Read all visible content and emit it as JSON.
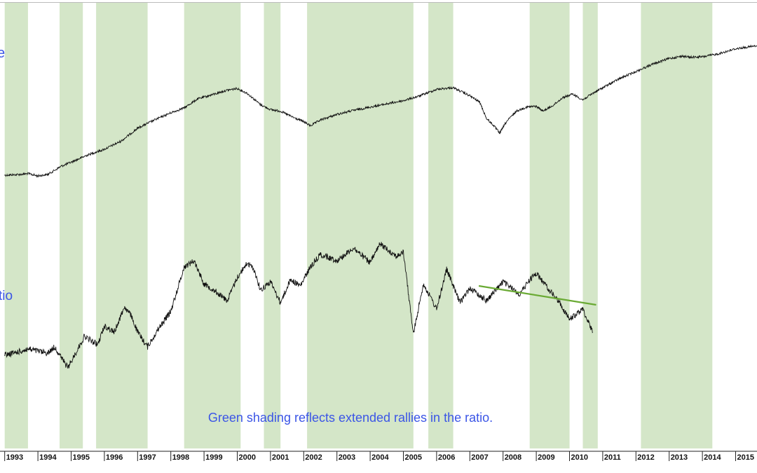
{
  "colors": {
    "shading": "#d4e6c8",
    "series_line": "#111111",
    "trendline": "#6aaa34",
    "annotation": "#3b55e6",
    "axis": "#222222",
    "background": "#ffffff"
  },
  "chart_data": {
    "type": "line",
    "title": "",
    "xlabel": "",
    "ylabel": "",
    "xlim": [
      1993.0,
      2016.0
    ],
    "tick_labels": [
      "1993",
      "1994",
      "1995",
      "1996",
      "1997",
      "1998",
      "1999",
      "2000",
      "2001",
      "2002",
      "2003",
      "2004",
      "2005",
      "2006",
      "2007",
      "2008",
      "2009",
      "2010",
      "2011",
      "2012",
      "2013",
      "2014",
      "2015"
    ],
    "series_labels": {
      "upper": "e",
      "lower": "tio"
    },
    "annotation": "Green shading reflects extended rallies in the ratio.",
    "shaded_periods": [
      [
        1993.0,
        1993.7
      ],
      [
        1994.65,
        1995.35
      ],
      [
        1995.75,
        1997.3
      ],
      [
        1998.4,
        2000.1
      ],
      [
        2000.8,
        2001.3
      ],
      [
        2002.1,
        2005.3
      ],
      [
        2005.75,
        2006.5
      ],
      [
        2008.8,
        2010.0
      ],
      [
        2010.4,
        2010.85
      ],
      [
        2012.15,
        2014.3
      ]
    ],
    "series": [
      {
        "id": "upper",
        "values": [
          [
            1993.0,
            8.0
          ],
          [
            1993.5,
            8.05
          ],
          [
            1993.7,
            8.1
          ],
          [
            1994.0,
            7.95
          ],
          [
            1994.3,
            8.05
          ],
          [
            1994.7,
            8.55
          ],
          [
            1995.0,
            8.8
          ],
          [
            1995.5,
            9.25
          ],
          [
            1996.0,
            9.6
          ],
          [
            1996.5,
            10.1
          ],
          [
            1997.0,
            10.9
          ],
          [
            1997.5,
            11.4
          ],
          [
            1998.0,
            11.85
          ],
          [
            1998.4,
            12.15
          ],
          [
            1998.8,
            12.7
          ],
          [
            1999.3,
            13.0
          ],
          [
            1999.7,
            13.25
          ],
          [
            2000.0,
            13.35
          ],
          [
            2000.3,
            13.05
          ],
          [
            2000.7,
            12.35
          ],
          [
            2001.0,
            12.05
          ],
          [
            2001.3,
            11.95
          ],
          [
            2001.7,
            11.55
          ],
          [
            2002.0,
            11.3
          ],
          [
            2002.2,
            11.05
          ],
          [
            2002.5,
            11.4
          ],
          [
            2003.0,
            11.75
          ],
          [
            2003.5,
            12.0
          ],
          [
            2004.0,
            12.2
          ],
          [
            2004.5,
            12.4
          ],
          [
            2005.0,
            12.6
          ],
          [
            2005.5,
            12.9
          ],
          [
            2006.0,
            13.3
          ],
          [
            2006.5,
            13.4
          ],
          [
            2006.8,
            13.1
          ],
          [
            2007.0,
            12.9
          ],
          [
            2007.3,
            12.5
          ],
          [
            2007.5,
            11.5
          ],
          [
            2007.7,
            11.1
          ],
          [
            2007.9,
            10.6
          ],
          [
            2008.1,
            11.3
          ],
          [
            2008.4,
            11.95
          ],
          [
            2008.7,
            12.2
          ],
          [
            2009.0,
            12.25
          ],
          [
            2009.2,
            11.95
          ],
          [
            2009.5,
            12.3
          ],
          [
            2009.8,
            12.8
          ],
          [
            2010.1,
            13.0
          ],
          [
            2010.4,
            12.65
          ],
          [
            2010.7,
            13.05
          ],
          [
            2011.0,
            13.4
          ],
          [
            2011.5,
            13.95
          ],
          [
            2012.0,
            14.4
          ],
          [
            2012.5,
            14.85
          ],
          [
            2013.0,
            15.2
          ],
          [
            2013.4,
            15.35
          ],
          [
            2013.6,
            15.28
          ],
          [
            2014.0,
            15.3
          ],
          [
            2014.5,
            15.5
          ],
          [
            2015.0,
            15.8
          ],
          [
            2015.5,
            15.95
          ],
          [
            2016.0,
            16.0
          ]
        ]
      },
      {
        "id": "lower",
        "values": [
          [
            1993.0,
            1.51
          ],
          [
            1993.5,
            1.53
          ],
          [
            1993.7,
            1.54
          ],
          [
            1994.0,
            1.53
          ],
          [
            1994.3,
            1.52
          ],
          [
            1994.5,
            1.55
          ],
          [
            1994.9,
            1.45
          ],
          [
            1995.1,
            1.51
          ],
          [
            1995.4,
            1.6
          ],
          [
            1995.8,
            1.56
          ],
          [
            1996.0,
            1.65
          ],
          [
            1996.3,
            1.62
          ],
          [
            1996.6,
            1.74
          ],
          [
            1996.8,
            1.7
          ],
          [
            1997.0,
            1.62
          ],
          [
            1997.3,
            1.55
          ],
          [
            1997.6,
            1.63
          ],
          [
            1998.0,
            1.72
          ],
          [
            1998.4,
            1.93
          ],
          [
            1998.7,
            1.96
          ],
          [
            1999.0,
            1.85
          ],
          [
            1999.3,
            1.82
          ],
          [
            1999.7,
            1.77
          ],
          [
            2000.0,
            1.88
          ],
          [
            2000.3,
            1.95
          ],
          [
            2000.5,
            1.92
          ],
          [
            2000.7,
            1.82
          ],
          [
            2001.0,
            1.86
          ],
          [
            2001.3,
            1.76
          ],
          [
            2001.6,
            1.87
          ],
          [
            2001.9,
            1.84
          ],
          [
            2002.2,
            1.93
          ],
          [
            2002.5,
            1.99
          ],
          [
            2003.0,
            1.96
          ],
          [
            2003.5,
            2.02
          ],
          [
            2004.0,
            1.95
          ],
          [
            2004.3,
            2.04
          ],
          [
            2004.8,
            1.98
          ],
          [
            2005.0,
            2.0
          ],
          [
            2005.3,
            1.61
          ],
          [
            2005.6,
            1.85
          ],
          [
            2006.0,
            1.73
          ],
          [
            2006.3,
            1.92
          ],
          [
            2006.7,
            1.76
          ],
          [
            2007.0,
            1.83
          ],
          [
            2007.5,
            1.77
          ],
          [
            2008.0,
            1.86
          ],
          [
            2008.5,
            1.8
          ],
          [
            2008.8,
            1.87
          ],
          [
            2009.0,
            1.9
          ],
          [
            2009.3,
            1.84
          ],
          [
            2009.7,
            1.76
          ],
          [
            2010.0,
            1.68
          ],
          [
            2010.4,
            1.73
          ],
          [
            2010.7,
            1.62
          ]
        ]
      },
      {
        "id": "trendline",
        "values": [
          [
            2007.27,
            1.84
          ],
          [
            2010.8,
            1.75
          ]
        ]
      }
    ]
  }
}
